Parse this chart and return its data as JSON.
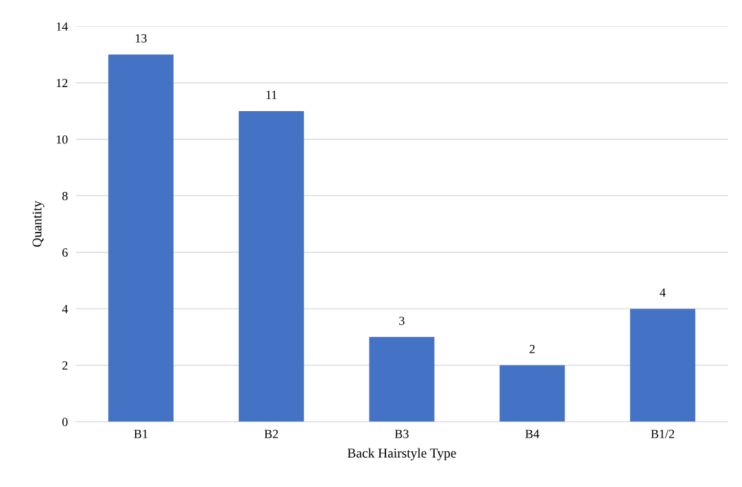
{
  "chart_data": {
    "type": "bar",
    "xlabel": "Back Hairstyle Type",
    "ylabel": "Quantity",
    "categories": [
      "B1",
      "B2",
      "B3",
      "B4",
      "B1/2"
    ],
    "values": [
      13,
      11,
      3,
      2,
      4
    ],
    "color": "#4472c4",
    "ylim": [
      0,
      14
    ],
    "yticks": [
      0,
      2,
      4,
      6,
      8,
      10,
      12,
      14
    ],
    "grid": "y",
    "data_labels": true
  }
}
